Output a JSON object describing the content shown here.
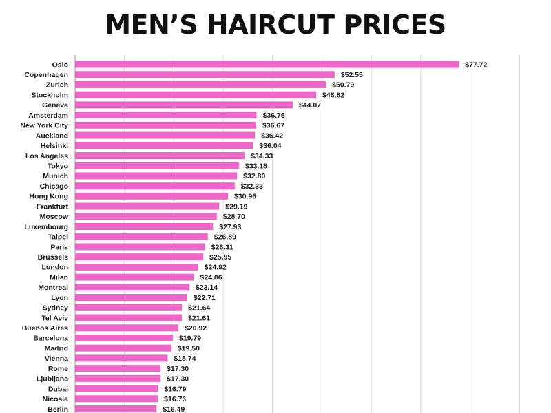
{
  "chart_data": {
    "type": "bar",
    "orientation": "horizontal",
    "title": "MEN’S HAIRCUT PRICES",
    "xlabel": "",
    "ylabel": "",
    "value_prefix": "$",
    "bar_color": "#ee66c8",
    "grid": true,
    "xlim": [
      0,
      90
    ],
    "categories": [
      "Oslo",
      "Copenhagen",
      "Zurich",
      "Stockholm",
      "Geneva",
      "Amsterdam",
      "New York City",
      "Auckland",
      "Helsinki",
      "Los Angeles",
      "Tokyo",
      "Munich",
      "Chicago",
      "Hong Kong",
      "Frankfurt",
      "Moscow",
      "Luxembourg",
      "Taipei",
      "Paris",
      "Brussels",
      "London",
      "Milan",
      "Montreal",
      "Lyon",
      "Sydney",
      "Tel Aviv",
      "Buenos Aires",
      "Barcelona",
      "Madrid",
      "Vienna",
      "Rome",
      "Ljubljana",
      "Dubai",
      "Nicosia",
      "Berlin"
    ],
    "values": [
      77.72,
      52.55,
      50.79,
      48.82,
      44.07,
      36.76,
      36.67,
      36.42,
      36.04,
      34.33,
      33.18,
      32.8,
      32.33,
      30.96,
      29.19,
      28.7,
      27.93,
      26.89,
      26.31,
      25.95,
      24.92,
      24.06,
      23.14,
      22.71,
      21.64,
      21.61,
      20.92,
      19.79,
      19.5,
      18.74,
      17.3,
      17.3,
      16.79,
      16.76,
      16.49
    ],
    "value_labels": [
      "$77.72",
      "$52.55",
      "$50.79",
      "$48.82",
      "$44.07",
      "$36.76",
      "$36.67",
      "$36.42",
      "$36.04",
      "$34.33",
      "$33.18",
      "$32.80",
      "$32.33",
      "$30.96",
      "$29.19",
      "$28.70",
      "$27.93",
      "$26.89",
      "$26.31",
      "$25.95",
      "$24.92",
      "$24.06",
      "$23.14",
      "$22.71",
      "$21.64",
      "$21.61",
      "$20.92",
      "$19.79",
      "$19.50",
      "$18.74",
      "$17.30",
      "$17.30",
      "$16.79",
      "$16.76",
      "$16.49"
    ]
  }
}
